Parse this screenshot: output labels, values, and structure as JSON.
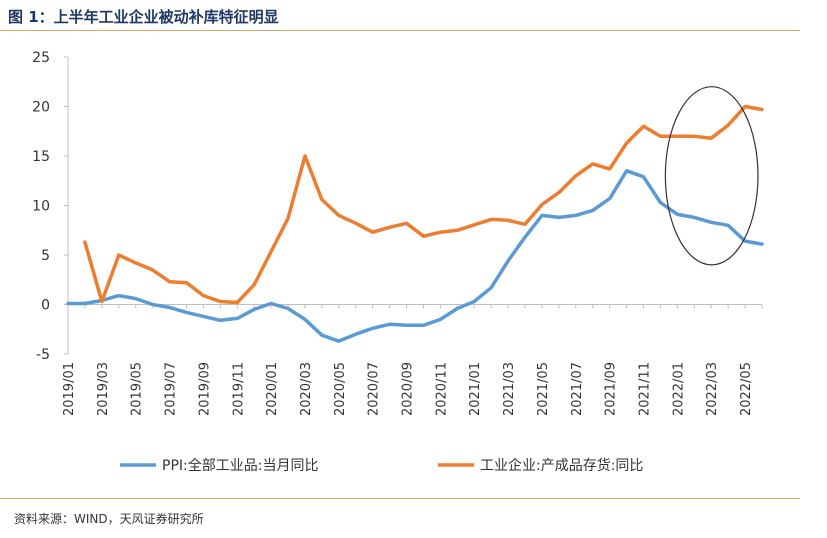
{
  "header": {
    "title": "图 1：上半年工业企业被动补库特征明显"
  },
  "footer": {
    "source": "资料来源：WIND，天风证券研究所"
  },
  "chart_data": {
    "type": "line",
    "title": "",
    "xlabel": "",
    "ylabel": "",
    "ylim": [
      -5,
      25
    ],
    "yticks": [
      -5,
      0,
      5,
      10,
      15,
      20,
      25
    ],
    "grid": false,
    "legend_position": "bottom",
    "x": [
      "2019/01",
      "2019/02",
      "2019/03",
      "2019/04",
      "2019/05",
      "2019/06",
      "2019/07",
      "2019/08",
      "2019/09",
      "2019/10",
      "2019/11",
      "2019/12",
      "2020/01",
      "2020/02",
      "2020/03",
      "2020/04",
      "2020/05",
      "2020/06",
      "2020/07",
      "2020/08",
      "2020/09",
      "2020/10",
      "2020/11",
      "2020/12",
      "2021/01",
      "2021/02",
      "2021/03",
      "2021/04",
      "2021/05",
      "2021/06",
      "2021/07",
      "2021/08",
      "2021/09",
      "2021/10",
      "2021/11",
      "2021/12",
      "2022/01",
      "2022/02",
      "2022/03",
      "2022/04",
      "2022/05",
      "2022/06"
    ],
    "x_tick_labels": [
      "2019/01",
      "2019/03",
      "2019/05",
      "2019/07",
      "2019/09",
      "2019/11",
      "2020/01",
      "2020/03",
      "2020/05",
      "2020/07",
      "2020/09",
      "2020/11",
      "2021/01",
      "2021/03",
      "2021/05",
      "2021/07",
      "2021/09",
      "2021/11",
      "2022/01",
      "2022/03",
      "2022/05"
    ],
    "series": [
      {
        "name": "PPI:全部工业品:当月同比",
        "color": "#5b9bd5",
        "values": [
          0.1,
          0.1,
          0.4,
          0.9,
          0.6,
          0.0,
          -0.3,
          -0.8,
          -1.2,
          -1.6,
          -1.4,
          -0.5,
          0.1,
          -0.4,
          -1.5,
          -3.1,
          -3.7,
          -3.0,
          -2.4,
          -2.0,
          -2.1,
          -2.1,
          -1.5,
          -0.4,
          0.3,
          1.7,
          4.4,
          6.8,
          9.0,
          8.8,
          9.0,
          9.5,
          10.7,
          13.5,
          12.9,
          10.3,
          9.1,
          8.8,
          8.3,
          8.0,
          6.4,
          6.1
        ]
      },
      {
        "name": "工业企业:产成品存货:同比",
        "color": "#ed7d31",
        "values": [
          null,
          6.3,
          0.3,
          5.0,
          4.2,
          3.5,
          2.3,
          2.2,
          0.9,
          0.3,
          0.2,
          2.0,
          null,
          8.7,
          15.0,
          10.6,
          9.0,
          8.2,
          7.3,
          7.8,
          8.2,
          6.9,
          7.3,
          7.5,
          null,
          8.6,
          8.5,
          8.1,
          10.1,
          11.3,
          13.0,
          14.2,
          13.7,
          16.3,
          18.0,
          17.0,
          null,
          17.0,
          16.8,
          18.1,
          20.0,
          19.7
        ]
      }
    ],
    "annotations": [
      {
        "type": "ellipse",
        "label": "",
        "x_range": [
          "2022/01",
          "2022/06"
        ],
        "y_range": [
          4,
          22
        ]
      }
    ]
  },
  "layout_note_colors": {
    "rule": "#e0a96a",
    "title": "#1f3864"
  }
}
